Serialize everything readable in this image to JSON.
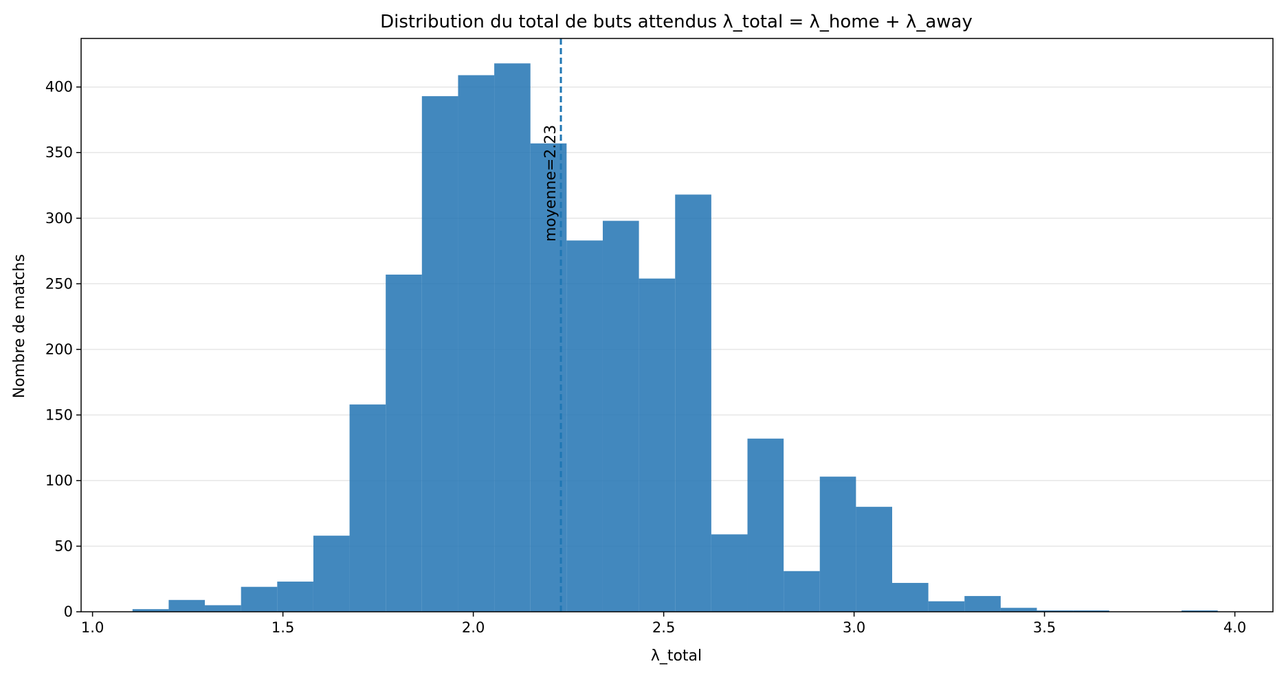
{
  "chart_data": {
    "type": "bar",
    "title": "Distribution du total de buts attendus λ_total = λ_home + λ_away",
    "xlabel": "λ_total",
    "ylabel": "Nombre de matchs",
    "xlim": [
      0.97,
      4.1
    ],
    "ylim": [
      0,
      437
    ],
    "xticks": [
      1.0,
      1.5,
      2.0,
      2.5,
      3.0,
      3.5,
      4.0
    ],
    "xtick_labels": [
      "1.0",
      "1.5",
      "2.0",
      "2.5",
      "3.0",
      "3.5",
      "4.0"
    ],
    "yticks": [
      0,
      50,
      100,
      150,
      200,
      250,
      300,
      350,
      400
    ],
    "ytick_labels": [
      "0",
      "50",
      "100",
      "150",
      "200",
      "250",
      "300",
      "350",
      "400"
    ],
    "grid": "horizontal",
    "bin_edges": [
      1.105,
      1.2,
      1.295,
      1.39,
      1.485,
      1.58,
      1.675,
      1.77,
      1.865,
      1.96,
      2.055,
      2.15,
      2.245,
      2.34,
      2.435,
      2.53,
      2.625,
      2.72,
      2.815,
      2.91,
      3.005,
      3.1,
      3.195,
      3.29,
      3.385,
      3.48,
      3.575,
      3.67,
      3.765,
      3.86,
      3.955
    ],
    "values": [
      2,
      9,
      5,
      19,
      23,
      58,
      158,
      257,
      393,
      409,
      418,
      357,
      283,
      298,
      254,
      318,
      59,
      132,
      31,
      103,
      80,
      22,
      8,
      12,
      3,
      1,
      1,
      0,
      0,
      1
    ],
    "bar_color": "#2878b5",
    "mean": 2.23,
    "mean_line_color": "#1f77b4",
    "annotations": [
      {
        "text": "moyenne=2.23",
        "x": 2.23
      }
    ]
  }
}
